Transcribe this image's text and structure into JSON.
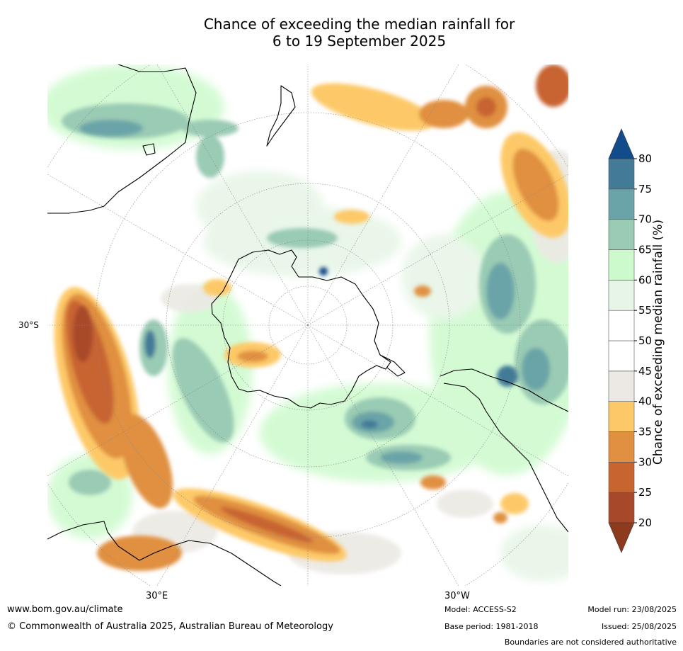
{
  "title_line1": "Chance of exceeding the median rainfall for",
  "title_line2": "6 to 19 September 2025",
  "map": {
    "lat_label": "30°S",
    "lon_label_left": "30°E",
    "lon_label_right": "30°W",
    "projection": "south-polar-stereographic",
    "graticule_color": "#888888",
    "coastline_color": "#000000"
  },
  "legend": {
    "title": "Chance of exceeding median rainfall (%)",
    "ticks": [
      "20",
      "25",
      "30",
      "35",
      "40",
      "45",
      "50",
      "55",
      "60",
      "65",
      "70",
      "75",
      "80"
    ],
    "bands": [
      {
        "from": 20,
        "to": 25,
        "color": "#a8482a"
      },
      {
        "from": 25,
        "to": 30,
        "color": "#c86430"
      },
      {
        "from": 30,
        "to": 35,
        "color": "#e09040"
      },
      {
        "from": 35,
        "to": 40,
        "color": "#fdc968"
      },
      {
        "from": 40,
        "to": 45,
        "color": "#ece9e4"
      },
      {
        "from": 45,
        "to": 50,
        "color": "#ffffff"
      },
      {
        "from": 50,
        "to": 55,
        "color": "#ffffff"
      },
      {
        "from": 55,
        "to": 60,
        "color": "#e6f5e6"
      },
      {
        "from": 60,
        "to": 65,
        "color": "#ccfacc"
      },
      {
        "from": 65,
        "to": 70,
        "color": "#9acbb4"
      },
      {
        "from": 70,
        "to": 75,
        "color": "#6aa4a8"
      },
      {
        "from": 75,
        "to": 80,
        "color": "#427a98"
      }
    ],
    "under_color": "#8e3a1e",
    "over_color": "#124c8a"
  },
  "footer": {
    "url": "www.bom.gov.au/climate",
    "copyright": "© Commonwealth of Australia 2025, Australian Bureau of Meteorology",
    "model": "Model: ACCESS-S2",
    "base_period": "Base period: 1981-2018",
    "model_run": "Model run: 23/08/2025",
    "issued": "Issued: 25/08/2025",
    "disclaimer": "Boundaries are not considered authoritative"
  }
}
